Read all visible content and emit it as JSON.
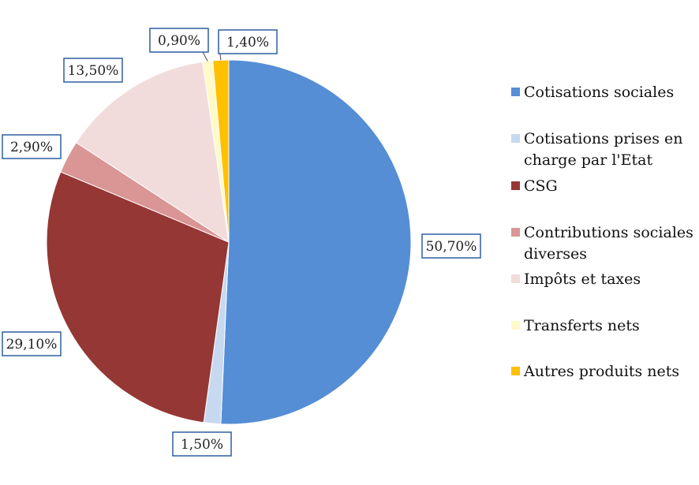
{
  "chart_data": {
    "type": "pie",
    "title": "",
    "slices": [
      {
        "label": "Cotisations sociales",
        "value": 50.7,
        "value_label": "50,70%",
        "color": "#558ed5"
      },
      {
        "label": "Cotisations prises en charge par l'Etat",
        "value": 1.5,
        "value_label": "1,50%",
        "color": "#c6d9f1"
      },
      {
        "label": "CSG",
        "value": 29.1,
        "value_label": "29,10%",
        "color": "#953735"
      },
      {
        "label": "Contributions sociales diverses",
        "value": 2.9,
        "value_label": "2,90%",
        "color": "#d99694"
      },
      {
        "label": "Impôts et taxes",
        "value": 13.5,
        "value_label": "13,50%",
        "color": "#f2dcdb"
      },
      {
        "label": "Transferts nets",
        "value": 0.9,
        "value_label": "0,90%",
        "color": "#fffac8"
      },
      {
        "label": "Autres produits nets",
        "value": 1.4,
        "value_label": "1,40%",
        "color": "#ffc000"
      }
    ],
    "legend": {
      "position": "right",
      "lines": [
        [
          "Cotisations sociales"
        ],
        [
          "Cotisations prises en",
          "charge par l'Etat"
        ],
        [
          "CSG"
        ],
        [
          "Contributions sociales",
          "diverses"
        ],
        [
          "Impôts et taxes"
        ],
        [
          "Transferts nets"
        ],
        [
          "Autres produits nets"
        ]
      ]
    }
  }
}
